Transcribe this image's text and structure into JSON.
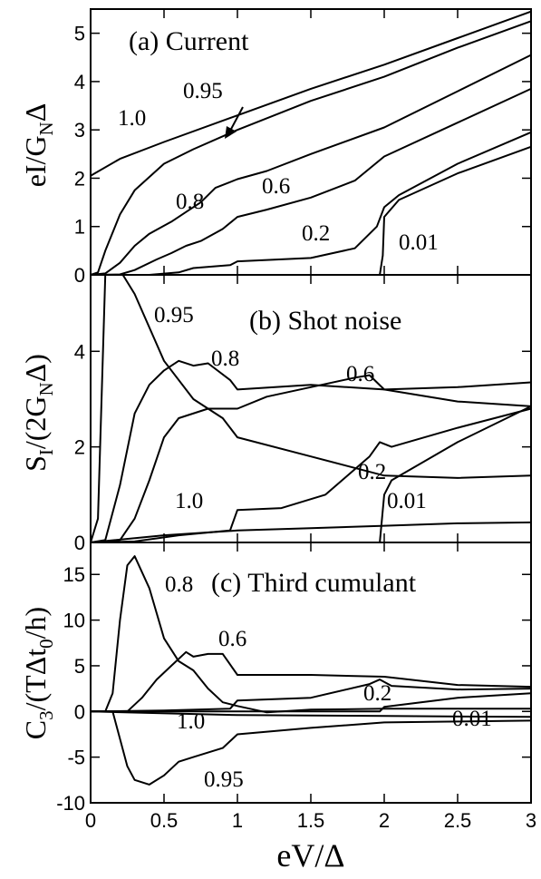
{
  "chart_data": [
    {
      "type": "line",
      "panel": "a",
      "title": "(a) Current",
      "ylabel_parts": {
        "main": "eI/G",
        "sub": "N",
        "tail": "Δ"
      },
      "ylim": [
        0,
        5.5
      ],
      "yticks": [
        0,
        1,
        2,
        3,
        4,
        5
      ],
      "series": [
        {
          "name": "1.0",
          "points": [
            [
              0,
              2.05
            ],
            [
              0.2,
              2.4
            ],
            [
              0.5,
              2.75
            ],
            [
              1.0,
              3.3
            ],
            [
              1.5,
              3.85
            ],
            [
              2.0,
              4.35
            ],
            [
              2.5,
              4.9
            ],
            [
              3.0,
              5.45
            ]
          ]
        },
        {
          "name": "0.95",
          "points": [
            [
              0,
              0
            ],
            [
              0.05,
              0.05
            ],
            [
              0.1,
              0.5
            ],
            [
              0.2,
              1.25
            ],
            [
              0.3,
              1.75
            ],
            [
              0.5,
              2.3
            ],
            [
              0.7,
              2.6
            ],
            [
              1.0,
              3.0
            ],
            [
              1.5,
              3.6
            ],
            [
              2.0,
              4.1
            ],
            [
              2.5,
              4.7
            ],
            [
              3.0,
              5.25
            ]
          ]
        },
        {
          "name": "0.8",
          "points": [
            [
              0,
              0
            ],
            [
              0.1,
              0.03
            ],
            [
              0.2,
              0.25
            ],
            [
              0.3,
              0.6
            ],
            [
              0.4,
              0.85
            ],
            [
              0.55,
              1.1
            ],
            [
              0.65,
              1.3
            ],
            [
              0.75,
              1.5
            ],
            [
              0.85,
              1.8
            ],
            [
              1.0,
              1.98
            ],
            [
              1.2,
              2.15
            ],
            [
              1.5,
              2.5
            ],
            [
              2.0,
              3.05
            ],
            [
              2.5,
              3.8
            ],
            [
              3.0,
              4.55
            ]
          ]
        },
        {
          "name": "0.6",
          "points": [
            [
              0,
              0
            ],
            [
              0.2,
              0.01
            ],
            [
              0.3,
              0.1
            ],
            [
              0.45,
              0.32
            ],
            [
              0.55,
              0.45
            ],
            [
              0.65,
              0.6
            ],
            [
              0.75,
              0.7
            ],
            [
              0.9,
              0.95
            ],
            [
              1.0,
              1.2
            ],
            [
              1.2,
              1.35
            ],
            [
              1.5,
              1.6
            ],
            [
              1.8,
              1.95
            ],
            [
              2.0,
              2.45
            ],
            [
              2.5,
              3.15
            ],
            [
              3.0,
              3.85
            ]
          ]
        },
        {
          "name": "0.2",
          "points": [
            [
              0,
              0
            ],
            [
              0.4,
              0.0
            ],
            [
              0.6,
              0.05
            ],
            [
              0.7,
              0.14
            ],
            [
              0.95,
              0.2
            ],
            [
              1.0,
              0.28
            ],
            [
              1.5,
              0.35
            ],
            [
              1.8,
              0.55
            ],
            [
              1.95,
              1.0
            ],
            [
              2.0,
              1.4
            ],
            [
              2.1,
              1.65
            ],
            [
              2.5,
              2.3
            ],
            [
              3.0,
              2.95
            ]
          ]
        },
        {
          "name": "0.01",
          "points": [
            [
              0,
              0
            ],
            [
              1.97,
              0
            ],
            [
              1.99,
              0.4
            ],
            [
              2.0,
              1.2
            ],
            [
              2.1,
              1.55
            ],
            [
              2.5,
              2.1
            ],
            [
              3.0,
              2.65
            ]
          ]
        }
      ],
      "curve_labels": [
        "1.0",
        "0.95",
        "0.8",
        "0.6",
        "0.2",
        "0.01"
      ]
    },
    {
      "type": "line",
      "panel": "b",
      "title": "(b) Shot noise",
      "ylabel_parts": {
        "main": "S",
        "sub": "I",
        "mid": "/(2G",
        "sub2": "N",
        "tail": "Δ)"
      },
      "ylim": [
        0,
        5.6
      ],
      "yticks": [
        0,
        2,
        4
      ],
      "series": [
        {
          "name": "1.0",
          "points": [
            [
              0,
              0
            ],
            [
              0.5,
              0.15
            ],
            [
              1.0,
              0.25
            ],
            [
              1.5,
              0.3
            ],
            [
              2.0,
              0.35
            ],
            [
              2.5,
              0.4
            ],
            [
              3.0,
              0.42
            ]
          ]
        },
        {
          "name": "0.95",
          "points": [
            [
              0,
              0
            ],
            [
              0.05,
              0.5
            ],
            [
              0.1,
              5.6
            ],
            [
              0.22,
              5.6
            ],
            [
              0.3,
              5.2
            ],
            [
              0.5,
              3.8
            ],
            [
              0.7,
              3.0
            ],
            [
              0.9,
              2.6
            ],
            [
              1.0,
              2.2
            ],
            [
              1.5,
              1.8
            ],
            [
              2.0,
              1.4
            ],
            [
              2.5,
              1.35
            ],
            [
              3.0,
              1.4
            ]
          ]
        },
        {
          "name": "0.8",
          "points": [
            [
              0,
              0
            ],
            [
              0.1,
              0.05
            ],
            [
              0.2,
              1.2
            ],
            [
              0.3,
              2.7
            ],
            [
              0.4,
              3.3
            ],
            [
              0.5,
              3.6
            ],
            [
              0.6,
              3.8
            ],
            [
              0.7,
              3.7
            ],
            [
              0.8,
              3.75
            ],
            [
              0.95,
              3.4
            ],
            [
              1.0,
              3.2
            ],
            [
              1.5,
              3.3
            ],
            [
              2.0,
              3.2
            ],
            [
              2.5,
              3.25
            ],
            [
              3.0,
              3.35
            ]
          ]
        },
        {
          "name": "0.6",
          "points": [
            [
              0,
              0
            ],
            [
              0.2,
              0.05
            ],
            [
              0.3,
              0.5
            ],
            [
              0.4,
              1.3
            ],
            [
              0.5,
              2.2
            ],
            [
              0.6,
              2.6
            ],
            [
              0.8,
              2.8
            ],
            [
              1.0,
              2.8
            ],
            [
              1.2,
              3.05
            ],
            [
              1.5,
              3.25
            ],
            [
              1.8,
              3.45
            ],
            [
              1.9,
              3.5
            ],
            [
              2.0,
              3.2
            ],
            [
              2.5,
              2.95
            ],
            [
              3.0,
              2.85
            ]
          ]
        },
        {
          "name": "0.2",
          "points": [
            [
              0,
              0
            ],
            [
              0.3,
              0.02
            ],
            [
              0.6,
              0.15
            ],
            [
              0.95,
              0.25
            ],
            [
              1.0,
              0.68
            ],
            [
              1.3,
              0.72
            ],
            [
              1.6,
              1.0
            ],
            [
              1.9,
              1.8
            ],
            [
              1.97,
              2.1
            ],
            [
              2.05,
              2.0
            ],
            [
              2.5,
              2.4
            ],
            [
              3.0,
              2.8
            ]
          ]
        },
        {
          "name": "0.01",
          "points": [
            [
              0,
              0
            ],
            [
              1.97,
              0
            ],
            [
              2.0,
              1.0
            ],
            [
              2.05,
              1.3
            ],
            [
              2.5,
              2.1
            ],
            [
              3.0,
              2.85
            ]
          ]
        }
      ],
      "curve_labels": [
        "0.95",
        "0.8",
        "0.6",
        "0.2",
        "1.0",
        "0.01"
      ]
    },
    {
      "type": "line",
      "panel": "c",
      "title": "(c) Third cumulant",
      "ylabel_parts": {
        "main": "C",
        "sub": "3",
        "mid": "/(TΔt",
        "sub2": "0",
        "tail": "/h)"
      },
      "ylim": [
        -10,
        18.5
      ],
      "yticks": [
        -10,
        -5,
        0,
        5,
        10,
        15
      ],
      "series": [
        {
          "name": "1.0",
          "points": [
            [
              0,
              0
            ],
            [
              1.0,
              -0.4
            ],
            [
              2.0,
              -0.5
            ],
            [
              3.0,
              -0.6
            ]
          ]
        },
        {
          "name": "0.95",
          "points": [
            [
              0,
              0
            ],
            [
              0.15,
              0
            ],
            [
              0.2,
              -3.0
            ],
            [
              0.25,
              -6.0
            ],
            [
              0.3,
              -7.5
            ],
            [
              0.4,
              -8.0
            ],
            [
              0.5,
              -7.0
            ],
            [
              0.6,
              -5.5
            ],
            [
              0.7,
              -5.0
            ],
            [
              0.9,
              -4.0
            ],
            [
              1.0,
              -2.5
            ],
            [
              1.5,
              -1.8
            ],
            [
              2.0,
              -1.2
            ],
            [
              2.5,
              -1.1
            ],
            [
              3.0,
              -1.0
            ]
          ]
        },
        {
          "name": "0.8",
          "points": [
            [
              0,
              0
            ],
            [
              0.1,
              0.0
            ],
            [
              0.15,
              2.0
            ],
            [
              0.2,
              10.0
            ],
            [
              0.25,
              16.0
            ],
            [
              0.3,
              17.0
            ],
            [
              0.4,
              13.5
            ],
            [
              0.5,
              8.0
            ],
            [
              0.6,
              5.5
            ],
            [
              0.7,
              4.5
            ],
            [
              0.8,
              2.5
            ],
            [
              0.9,
              1.0
            ],
            [
              1.0,
              0.6
            ],
            [
              1.2,
              -0.1
            ],
            [
              1.5,
              0.2
            ],
            [
              2.0,
              0.3
            ],
            [
              3.0,
              0.3
            ]
          ]
        },
        {
          "name": "0.6",
          "points": [
            [
              0,
              0
            ],
            [
              0.25,
              0
            ],
            [
              0.35,
              1.5
            ],
            [
              0.45,
              3.5
            ],
            [
              0.55,
              5.0
            ],
            [
              0.65,
              6.5
            ],
            [
              0.7,
              6.0
            ],
            [
              0.8,
              6.3
            ],
            [
              0.9,
              6.3
            ],
            [
              1.0,
              4.0
            ],
            [
              1.5,
              4.0
            ],
            [
              2.0,
              3.8
            ],
            [
              2.5,
              2.9
            ],
            [
              3.0,
              2.7
            ]
          ]
        },
        {
          "name": "0.2",
          "points": [
            [
              0,
              0
            ],
            [
              0.5,
              0.1
            ],
            [
              0.95,
              0.3
            ],
            [
              1.0,
              1.2
            ],
            [
              1.5,
              1.5
            ],
            [
              1.9,
              3.0
            ],
            [
              1.97,
              3.5
            ],
            [
              2.05,
              2.8
            ],
            [
              2.5,
              2.4
            ],
            [
              3.0,
              2.5
            ]
          ]
        },
        {
          "name": "0.01",
          "points": [
            [
              0,
              0
            ],
            [
              1.97,
              0
            ],
            [
              2.0,
              0.5
            ],
            [
              2.5,
              1.5
            ],
            [
              3.0,
              2.0
            ]
          ]
        }
      ],
      "curve_labels": [
        "0.8",
        "0.6",
        "0.2",
        "0.01",
        "1.0",
        "0.95"
      ]
    }
  ],
  "x_axis": {
    "xlim": [
      0,
      3
    ],
    "xticks": [
      "0",
      "0.5",
      "1",
      "1.5",
      "2",
      "2.5",
      "3"
    ],
    "xlabel": "eV/Δ"
  }
}
